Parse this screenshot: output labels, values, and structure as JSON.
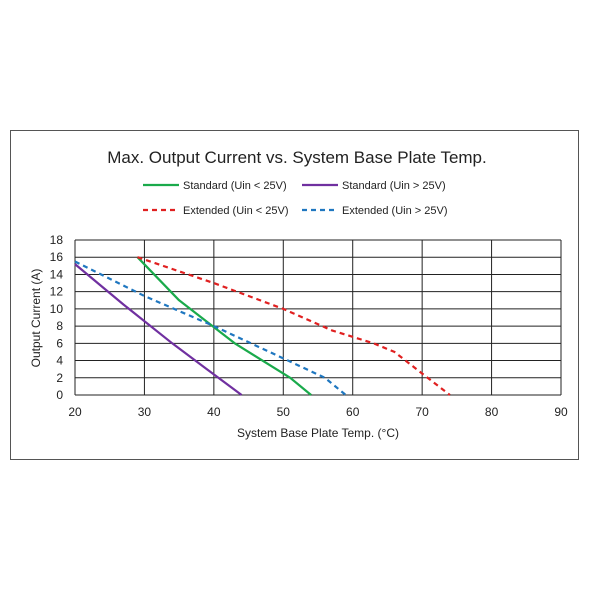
{
  "chart_data": {
    "type": "line",
    "title": "Max. Output Current vs. System Base Plate Temp.",
    "xlabel": "System Base Plate Temp. (°C)",
    "ylabel": "Output Current (A)",
    "xlim": [
      20,
      90
    ],
    "ylim": [
      0,
      18
    ],
    "xticks": [
      20,
      30,
      40,
      50,
      60,
      70,
      80,
      90
    ],
    "yticks": [
      0,
      2,
      4,
      6,
      8,
      10,
      12,
      14,
      16,
      18
    ],
    "grid": true,
    "legend_position": "top",
    "series": [
      {
        "name": "Standard  (Uin < 25V)",
        "color": "#1aaa4b",
        "dash": "solid",
        "points": [
          [
            29,
            16
          ],
          [
            35,
            11
          ],
          [
            43,
            6
          ],
          [
            51,
            2
          ],
          [
            54,
            0
          ]
        ]
      },
      {
        "name": "Standard  (Uin > 25V)",
        "color": "#7030a0",
        "dash": "solid",
        "points": [
          [
            20,
            15.2
          ],
          [
            27,
            10.5
          ],
          [
            34,
            6
          ],
          [
            39,
            3
          ],
          [
            44,
            0
          ]
        ]
      },
      {
        "name": "Extended  (Uin < 25V)",
        "color": "#e02020",
        "dash": "dashed",
        "points": [
          [
            29,
            16
          ],
          [
            40,
            13
          ],
          [
            50,
            10
          ],
          [
            57,
            7.5
          ],
          [
            63,
            6
          ],
          [
            66,
            5
          ],
          [
            70,
            2.5
          ],
          [
            74,
            0
          ]
        ]
      },
      {
        "name": "Extended  (Uin > 25V)",
        "color": "#1f77c0",
        "dash": "dashed",
        "points": [
          [
            20,
            15.5
          ],
          [
            30,
            11.5
          ],
          [
            40,
            8
          ],
          [
            48,
            5
          ],
          [
            56,
            2
          ],
          [
            59,
            0
          ]
        ]
      }
    ]
  }
}
